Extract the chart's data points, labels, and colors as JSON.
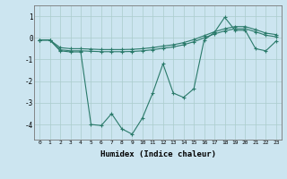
{
  "xlabel": "Humidex (Indice chaleur)",
  "bg_color": "#cce5f0",
  "grid_color": "#aacccc",
  "line_color": "#2a7a6a",
  "xlim": [
    -0.5,
    23.5
  ],
  "ylim": [
    -4.7,
    1.5
  ],
  "yticks": [
    -4,
    -3,
    -2,
    -1,
    0,
    1
  ],
  "xticks": [
    0,
    1,
    2,
    3,
    4,
    5,
    6,
    7,
    8,
    9,
    10,
    11,
    12,
    13,
    14,
    15,
    16,
    17,
    18,
    19,
    20,
    21,
    22,
    23
  ],
  "line1_x": [
    0,
    1,
    2,
    3,
    4,
    5,
    6,
    7,
    8,
    9,
    10,
    11,
    12,
    13,
    14,
    15,
    16,
    17,
    18,
    19,
    20,
    21,
    22,
    23
  ],
  "line1_y": [
    -0.1,
    -0.1,
    -0.6,
    -0.65,
    -0.65,
    -4.0,
    -4.05,
    -3.5,
    -4.2,
    -4.45,
    -3.7,
    -2.55,
    -1.2,
    -2.55,
    -2.75,
    -2.35,
    -0.1,
    0.25,
    0.95,
    0.35,
    0.35,
    -0.5,
    -0.6,
    -0.15
  ],
  "line2_x": [
    0,
    1,
    2,
    3,
    4,
    5,
    6,
    7,
    8,
    9,
    10,
    11,
    12,
    13,
    14,
    15,
    16,
    17,
    18,
    19,
    20,
    21,
    22,
    23
  ],
  "line2_y": [
    -0.1,
    -0.1,
    -0.45,
    -0.5,
    -0.5,
    -0.52,
    -0.54,
    -0.54,
    -0.54,
    -0.53,
    -0.5,
    -0.45,
    -0.38,
    -0.32,
    -0.22,
    -0.08,
    0.1,
    0.28,
    0.42,
    0.52,
    0.52,
    0.38,
    0.22,
    0.15
  ],
  "line3_x": [
    0,
    1,
    2,
    3,
    4,
    5,
    6,
    7,
    8,
    9,
    10,
    11,
    12,
    13,
    14,
    15,
    16,
    17,
    18,
    19,
    20,
    21,
    22,
    23
  ],
  "line3_y": [
    -0.1,
    -0.1,
    -0.55,
    -0.6,
    -0.6,
    -0.62,
    -0.64,
    -0.64,
    -0.64,
    -0.63,
    -0.6,
    -0.55,
    -0.48,
    -0.42,
    -0.32,
    -0.18,
    0.0,
    0.18,
    0.32,
    0.42,
    0.42,
    0.28,
    0.12,
    0.05
  ]
}
